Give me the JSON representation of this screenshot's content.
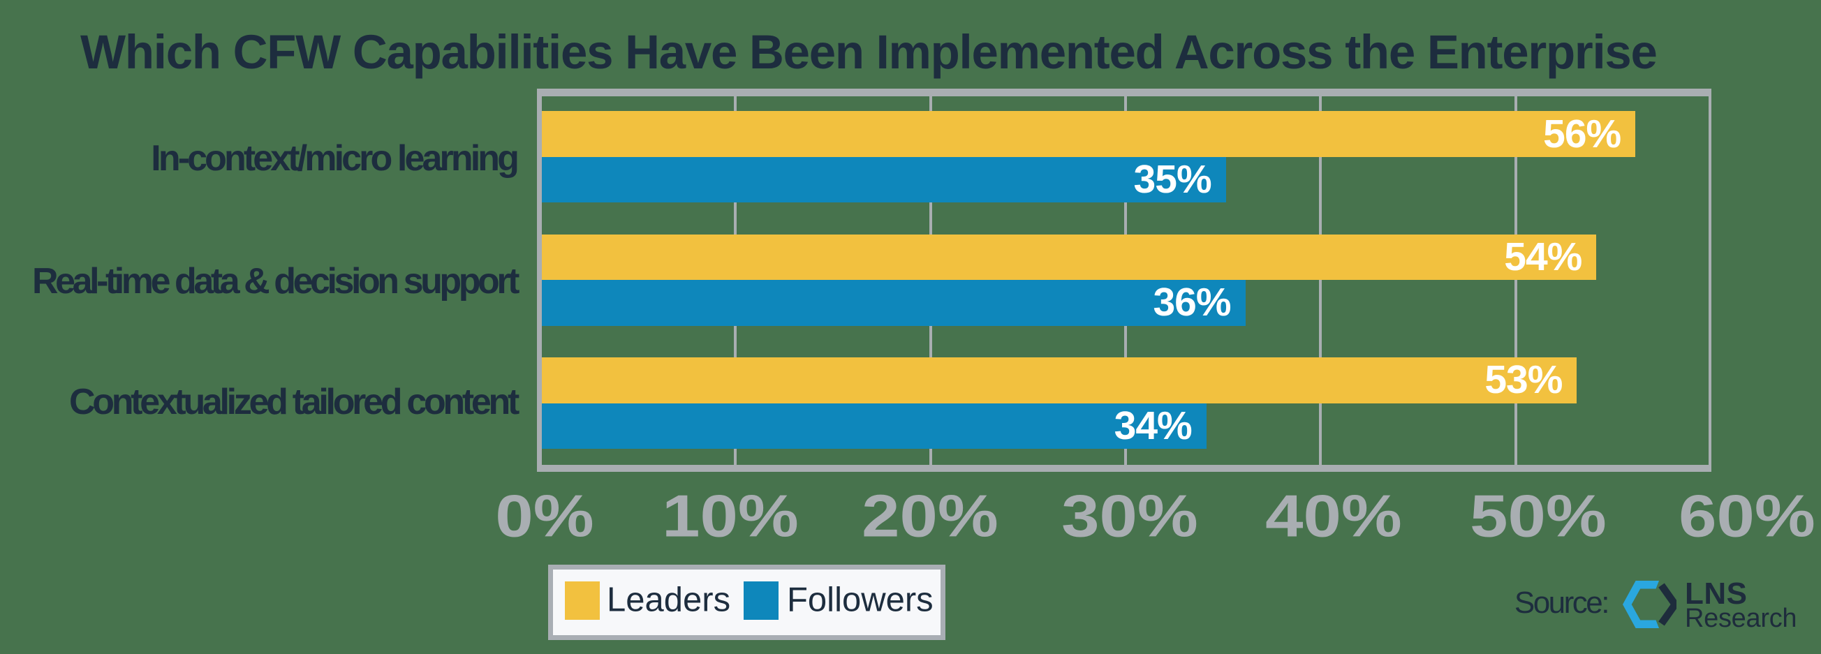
{
  "title": "Which CFW Capabilities Have Been Implemented Across the Enterprise",
  "chart_data": {
    "type": "bar",
    "orientation": "horizontal",
    "categories": [
      "In-context/micro learning",
      "Real-time data & decision support",
      "Contextualized tailored content"
    ],
    "series": [
      {
        "name": "Leaders",
        "values": [
          56,
          54,
          53
        ],
        "color": "#F2C13F"
      },
      {
        "name": "Followers",
        "values": [
          35,
          36,
          34
        ],
        "color": "#0E87BB"
      }
    ],
    "value_label_format": "{v}%",
    "x_ticks": [
      "0%",
      "10%",
      "20%",
      "30%",
      "40%",
      "50%",
      "60%"
    ],
    "xlim": [
      0,
      60
    ],
    "grid": "vertical",
    "legend_position": "bottom"
  },
  "legend": {
    "items": [
      {
        "label": "Leaders",
        "color": "#F2C13F"
      },
      {
        "label": "Followers",
        "color": "#0E87BB"
      }
    ]
  },
  "source": {
    "label": "Source:",
    "brand_name": "LNS",
    "brand_sub": "Research"
  },
  "colors": {
    "background": "#47734D",
    "bar_leaders": "#F2C13F",
    "bar_followers": "#0E87BB",
    "axis_gray": "#A9AEB2",
    "text_navy": "#1D2D3E",
    "value_text": "#FFFFFF",
    "legend_fill": "#F7F8FA",
    "logo_blue": "#2AA7DF",
    "logo_navy": "#1E2C3C"
  }
}
